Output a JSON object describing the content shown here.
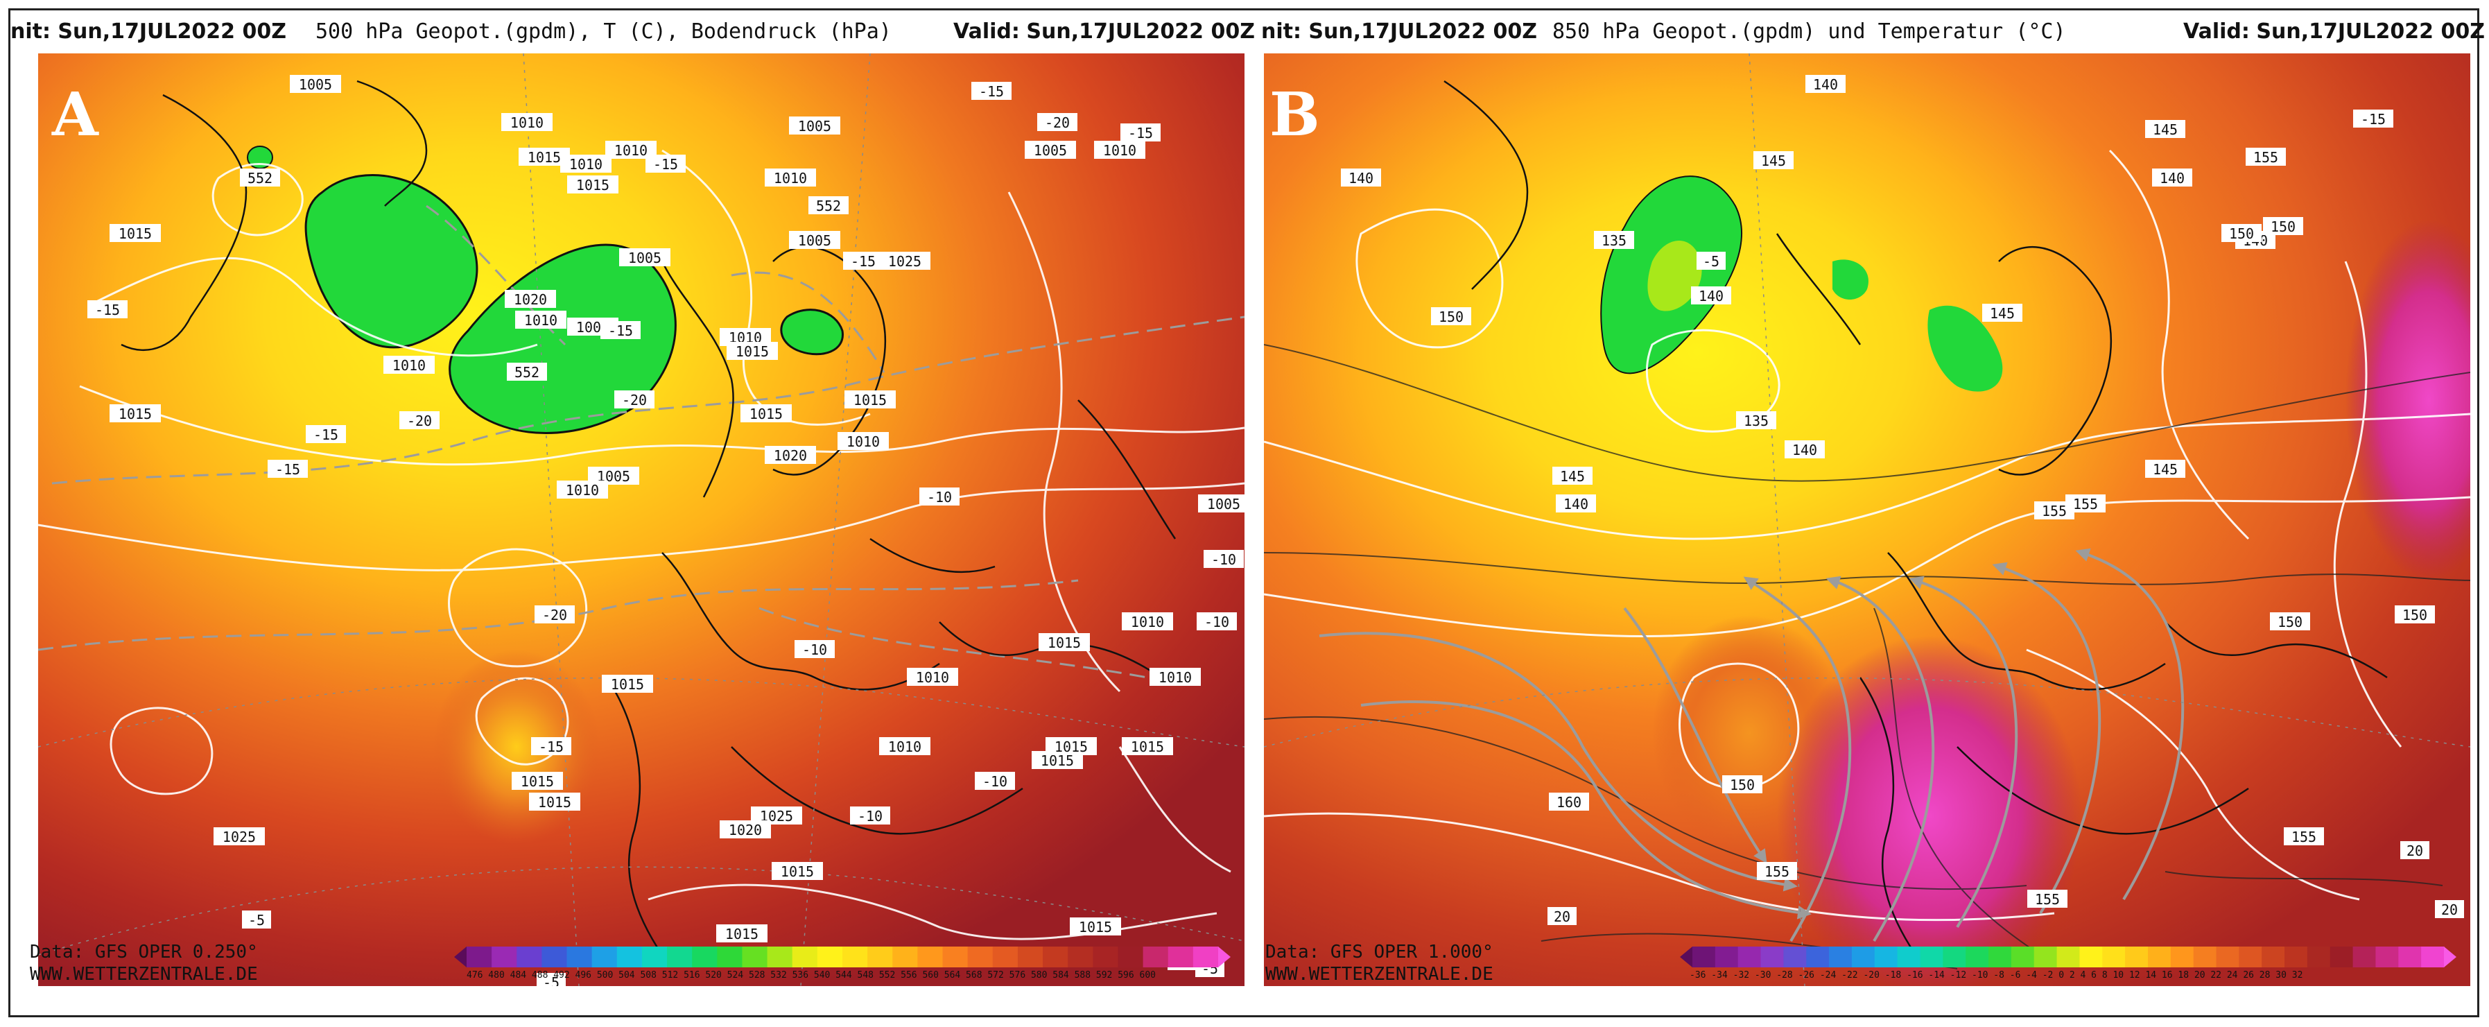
{
  "panel_a": {
    "letter": "A",
    "header_left": "nit: Sun,17JUL2022 00Z",
    "header_title": "500 hPa Geopot.(gpdm), T (C), Bodendruck (hPa)",
    "header_valid_label": "Valid:",
    "header_valid_value": "Sun,17JUL2022 00Z",
    "footer_data": "Data: GFS OPER 0.250°",
    "footer_site": "WWW.WETTERZENTRALE.DE",
    "colorbar_ticks": "476 480 484 488 492 496 500 504 508 512 516 520 524 528 532 536 540 544 548 552 556 560 564 568 572 576 580 584 588 592 596 600",
    "colorbar_colors": [
      "#5a0c5a",
      "#7d1a8c",
      "#9a2ab4",
      "#6a3fd0",
      "#3d5ad8",
      "#2a78e0",
      "#1ea0e6",
      "#14c2e0",
      "#10d6c0",
      "#12d890",
      "#18d860",
      "#2ed838",
      "#66e022",
      "#a8e81a",
      "#e8ec18",
      "#fff21a",
      "#ffe21a",
      "#ffcc1a",
      "#ffb21a",
      "#ff981c",
      "#f98020",
      "#ef6a22",
      "#e45a22",
      "#d44a20",
      "#c43a20",
      "#b42e22",
      "#a82424",
      "#9c1e26",
      "#c8286c",
      "#e0309a",
      "#f040c4",
      "#f856e0"
    ],
    "contour_labels": [
      {
        "t": "1005"
      },
      {
        "t": "552"
      },
      {
        "t": "1010"
      },
      {
        "t": "1015"
      },
      {
        "t": "1010"
      },
      {
        "t": "1010"
      },
      {
        "t": "-15"
      },
      {
        "t": "1015"
      },
      {
        "t": "1005"
      },
      {
        "t": "-15"
      },
      {
        "t": "1010"
      },
      {
        "t": "-20"
      },
      {
        "t": "-15"
      },
      {
        "t": "1010"
      },
      {
        "t": "1005"
      },
      {
        "t": "552"
      },
      {
        "t": "1005"
      },
      {
        "t": "1020"
      },
      {
        "t": "1010"
      },
      {
        "t": "1005"
      },
      {
        "t": "-15"
      },
      {
        "t": "1015"
      },
      {
        "t": "552"
      },
      {
        "t": "1010"
      },
      {
        "t": "-15"
      },
      {
        "t": "1015"
      },
      {
        "t": "1005"
      },
      {
        "t": "-15"
      },
      {
        "t": "1010"
      },
      {
        "t": "1015"
      },
      {
        "t": "-20"
      },
      {
        "t": "1015"
      },
      {
        "t": "1015"
      },
      {
        "t": "1010"
      },
      {
        "t": "-20"
      },
      {
        "t": "-15"
      },
      {
        "t": "1005"
      },
      {
        "t": "1010"
      },
      {
        "t": "-15"
      },
      {
        "t": "1020"
      },
      {
        "t": "1010"
      },
      {
        "t": "-20"
      },
      {
        "t": "1015"
      },
      {
        "t": "-10"
      },
      {
        "t": "1025"
      },
      {
        "t": "-10"
      },
      {
        "t": "1010"
      },
      {
        "t": "1015"
      },
      {
        "t": "1015"
      },
      {
        "t": "1010"
      },
      {
        "t": "1015"
      },
      {
        "t": "1025"
      },
      {
        "t": "1020"
      },
      {
        "t": "1015"
      },
      {
        "t": "1010"
      },
      {
        "t": "-10"
      },
      {
        "t": "1015"
      },
      {
        "t": "-10"
      },
      {
        "t": "1015"
      },
      {
        "t": "-15"
      },
      {
        "t": "1025"
      },
      {
        "t": "1015"
      },
      {
        "t": "-5"
      },
      {
        "t": "1015"
      },
      {
        "t": "-5"
      },
      {
        "t": "-5"
      },
      {
        "t": "-10"
      },
      {
        "t": "1015"
      },
      {
        "t": "-5"
      },
      {
        "t": "-10"
      },
      {
        "t": "1005"
      }
    ]
  },
  "panel_b": {
    "letter": "B",
    "header_left": "nit: Sun,17JUL2022 00Z",
    "header_title": "850 hPa Geopot.(gpdm) und Temperatur (°C)",
    "header_valid_label": "Valid:",
    "header_valid_value": "Sun,17JUL2022 00Z",
    "footer_data": "Data: GFS OPER 1.000°",
    "footer_site": "WWW.WETTERZENTRALE.DE",
    "colorbar_ticks": "-36 -34 -32 -30 -28 -26 -24 -22 -20 -18 -16 -14 -12 -10 -8 -6 -4 -2 0 2 4 6 8 10 12 14 16 18 20 22 24 26 28 30 32",
    "colorbar_colors": [
      "#5a0c5a",
      "#6e1476",
      "#821c92",
      "#9628ae",
      "#8a3cc8",
      "#6450d4",
      "#3c64dc",
      "#2a80e2",
      "#1e9ce6",
      "#16b6e2",
      "#10cccc",
      "#10d8a8",
      "#14d880",
      "#1cd85c",
      "#30d83c",
      "#5ade28",
      "#94e41e",
      "#d2ea1a",
      "#fff21a",
      "#ffe01a",
      "#ffca1a",
      "#ffb01a",
      "#ff961c",
      "#f57e20",
      "#ea6822",
      "#de5622",
      "#cc4420",
      "#bc3420",
      "#aa2822",
      "#9c1e26",
      "#b42258",
      "#cc2a86",
      "#e034ae",
      "#f044d0",
      "#f85ae6"
    ],
    "contour_labels": [
      {
        "t": "140"
      },
      {
        "t": "-15"
      },
      {
        "t": "140"
      },
      {
        "t": "155"
      },
      {
        "t": "145"
      },
      {
        "t": "145"
      },
      {
        "t": "140"
      },
      {
        "t": "135"
      },
      {
        "t": "-5"
      },
      {
        "t": "140"
      },
      {
        "t": "150"
      },
      {
        "t": "145"
      },
      {
        "t": "140"
      },
      {
        "t": "135"
      },
      {
        "t": "150"
      },
      {
        "t": "145"
      },
      {
        "t": "140"
      },
      {
        "t": "145"
      },
      {
        "t": "155"
      },
      {
        "t": "140"
      },
      {
        "t": "150"
      },
      {
        "t": "155"
      },
      {
        "t": "150"
      },
      {
        "t": "150"
      },
      {
        "t": "160"
      },
      {
        "t": "150"
      },
      {
        "t": "155"
      },
      {
        "t": "155"
      },
      {
        "t": "155"
      },
      {
        "t": "20"
      },
      {
        "t": "20"
      },
      {
        "t": "20"
      }
    ]
  }
}
